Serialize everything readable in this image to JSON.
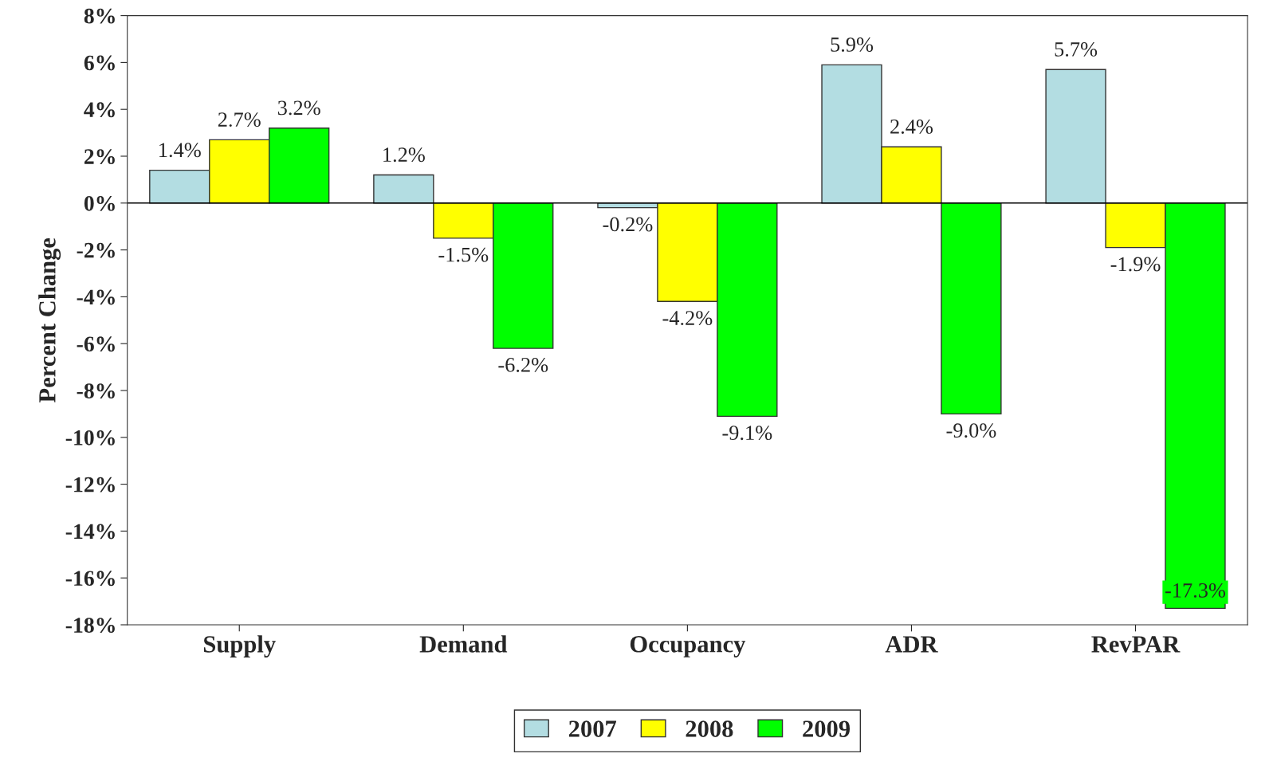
{
  "chart_data": {
    "type": "bar",
    "ylabel": "Percent Change",
    "categories": [
      "Supply",
      "Demand",
      "Occupancy",
      "ADR",
      "RevPAR"
    ],
    "series": [
      {
        "name": "2007",
        "color": "#b3dde2",
        "values": [
          1.4,
          1.2,
          -0.2,
          5.9,
          5.7
        ],
        "value_labels": [
          "1.4%",
          "1.2%",
          "-0.2%",
          "5.9%",
          "5.7%"
        ]
      },
      {
        "name": "2008",
        "color": "#ffff00",
        "values": [
          2.7,
          -1.5,
          -4.2,
          2.4,
          -1.9
        ],
        "value_labels": [
          "2.7%",
          "-1.5%",
          "-4.2%",
          "2.4%",
          "-1.9%"
        ]
      },
      {
        "name": "2009",
        "color": "#00ff00",
        "values": [
          3.2,
          -6.2,
          -9.1,
          -9.0,
          -17.3
        ],
        "value_labels": [
          "3.2%",
          "-6.2%",
          "-9.1%",
          "-9.0%",
          "-17.3%"
        ]
      }
    ],
    "ylim": [
      -18,
      8
    ],
    "yticks": [
      {
        "value": -18,
        "label": "-18%"
      },
      {
        "value": -16,
        "label": "-16%"
      },
      {
        "value": -14,
        "label": "-14%"
      },
      {
        "value": -12,
        "label": "-12%"
      },
      {
        "value": -10,
        "label": "-10%"
      },
      {
        "value": -8,
        "label": "-8%"
      },
      {
        "value": -6,
        "label": "-6%"
      },
      {
        "value": -4,
        "label": "-4%"
      },
      {
        "value": -2,
        "label": "-2%"
      },
      {
        "value": 0,
        "label": "0%"
      },
      {
        "value": 2,
        "label": "2%"
      },
      {
        "value": 4,
        "label": "4%"
      },
      {
        "value": 6,
        "label": "6%"
      },
      {
        "value": 8,
        "label": "8%"
      }
    ],
    "legend": "bottom"
  }
}
